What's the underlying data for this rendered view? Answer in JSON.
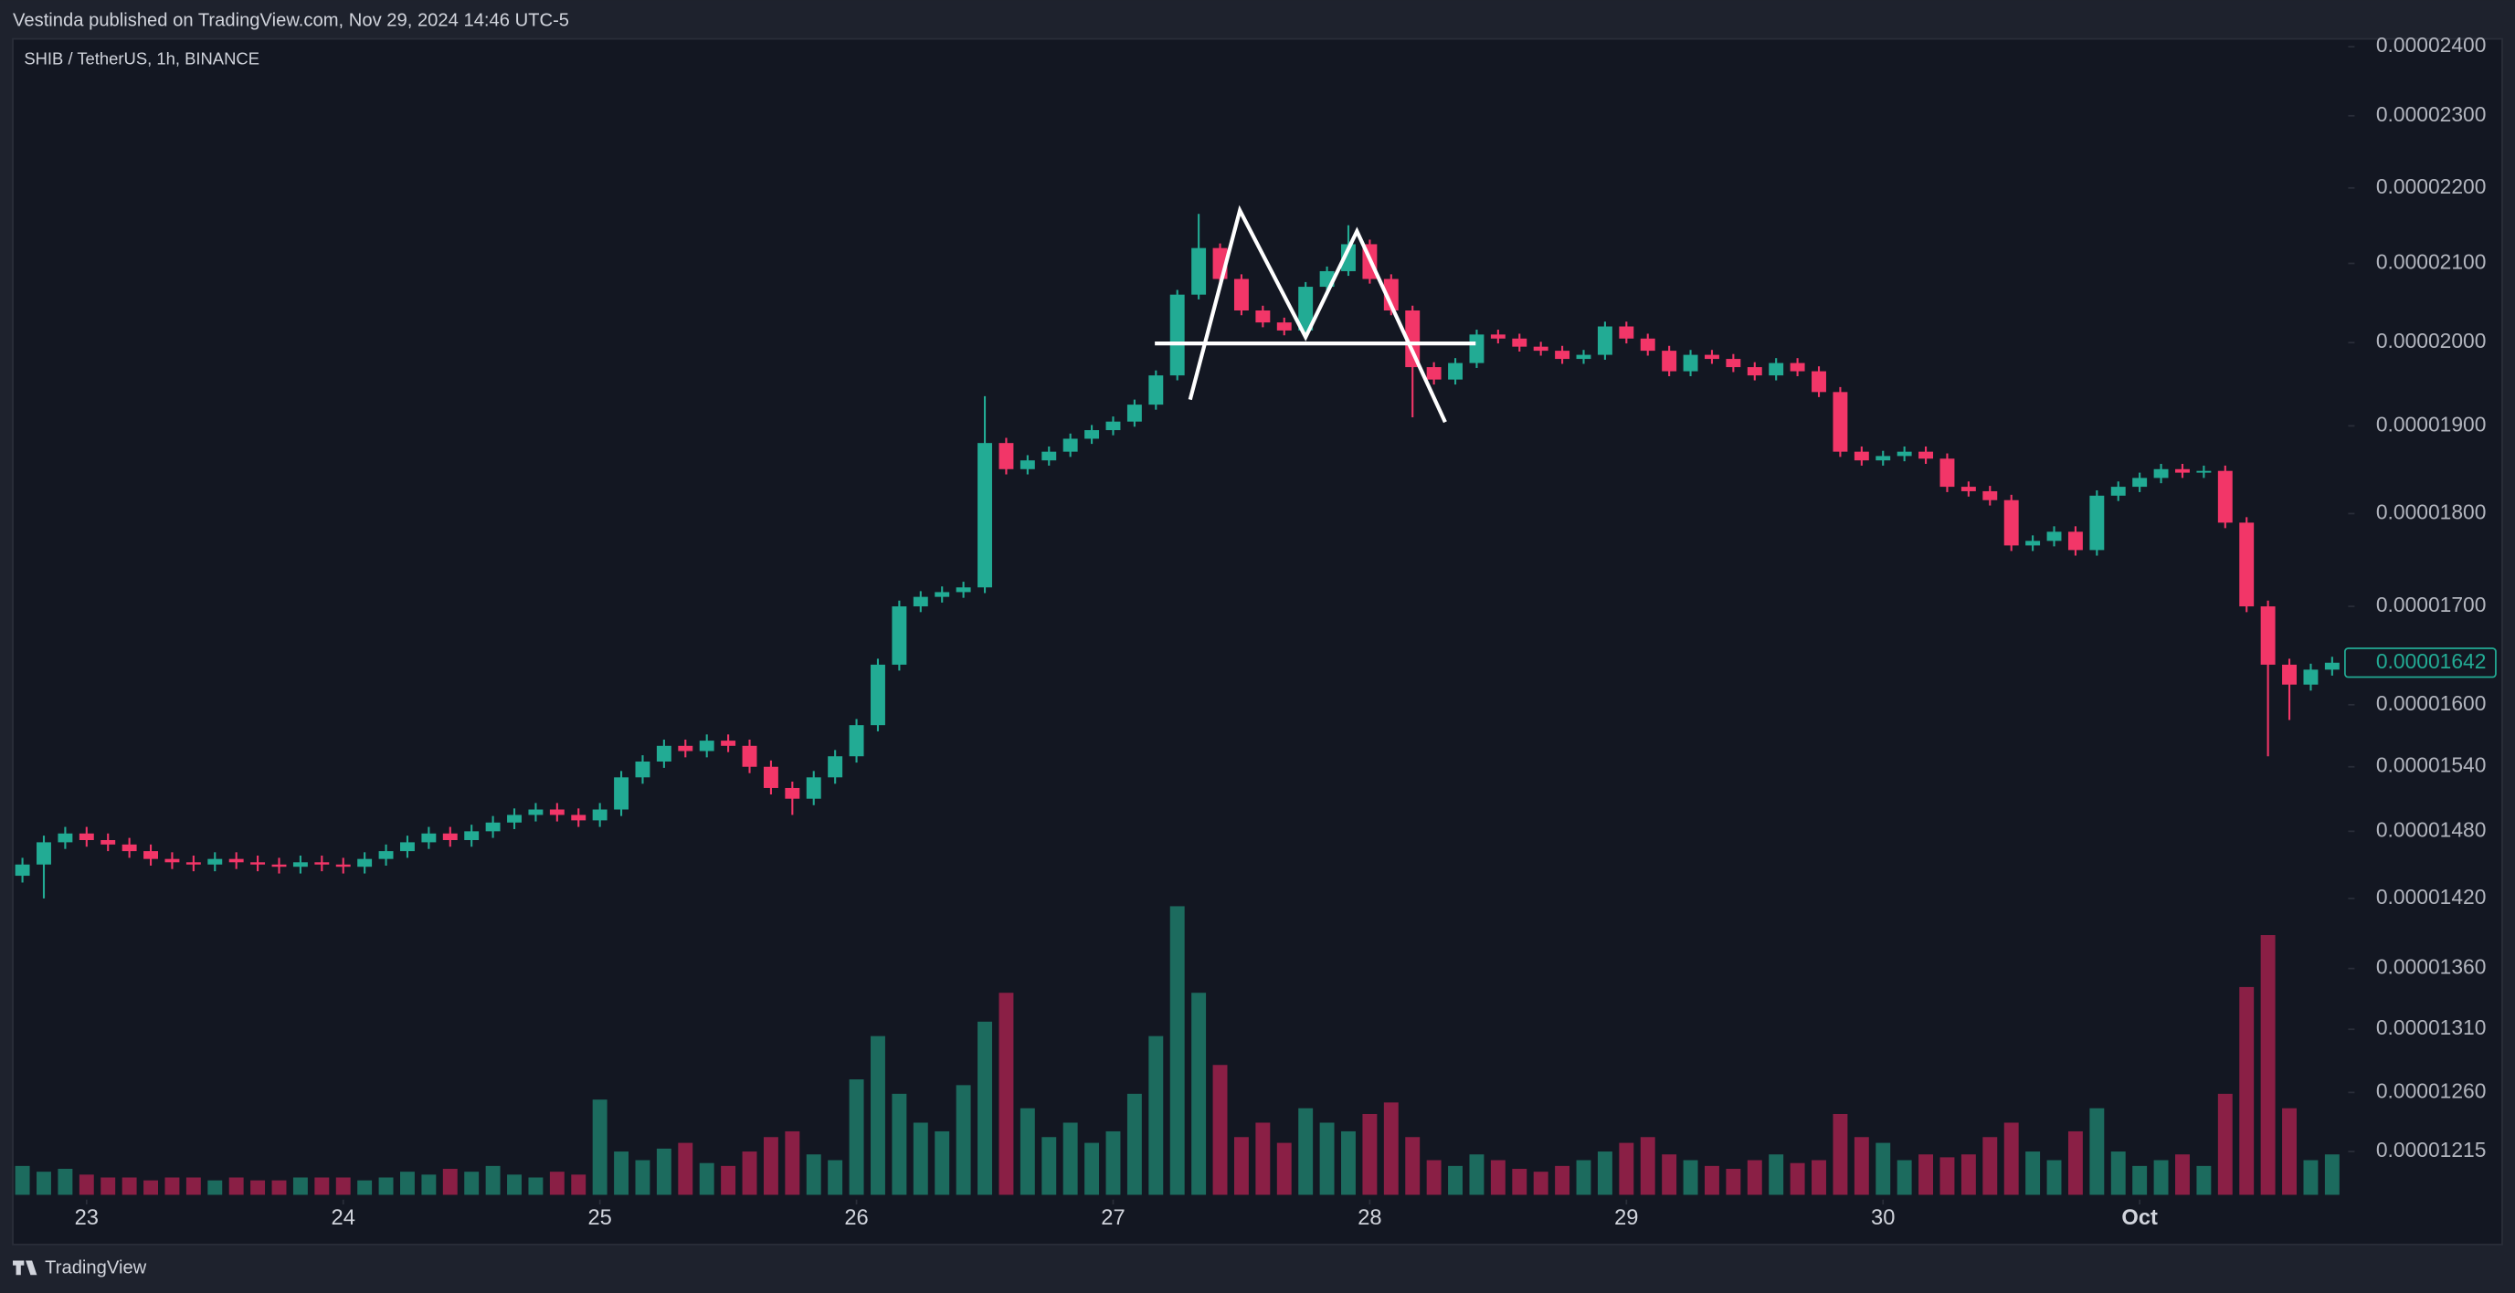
{
  "header": {
    "text": "Vestinda published on TradingView.com, Nov 29, 2024 14:46 UTC-5"
  },
  "footer": {
    "brand": "TradingView"
  },
  "chart_data": {
    "type": "candlestick",
    "title": "SHIB / TetherUS, 1h, BINANCE",
    "log_scale": true,
    "up_color": "#22ab94",
    "down_color": "#f23668",
    "volume_up_color": "#1c6b5e",
    "volume_down_color": "#8a1f45",
    "ylim": [
      1.183e-05,
      2.414e-05
    ],
    "yticks": [
      {
        "value": 2.4e-05,
        "label": "0.00002400"
      },
      {
        "value": 2.3e-05,
        "label": "0.00002300"
      },
      {
        "value": 2.2e-05,
        "label": "0.00002200"
      },
      {
        "value": 2.1e-05,
        "label": "0.00002100"
      },
      {
        "value": 2e-05,
        "label": "0.00002000"
      },
      {
        "value": 1.9e-05,
        "label": "0.00001900"
      },
      {
        "value": 1.8e-05,
        "label": "0.00001800"
      },
      {
        "value": 1.7e-05,
        "label": "0.00001700"
      },
      {
        "value": 1.6e-05,
        "label": "0.00001600"
      },
      {
        "value": 1.54e-05,
        "label": "0.00001540"
      },
      {
        "value": 1.48e-05,
        "label": "0.00001480"
      },
      {
        "value": 1.42e-05,
        "label": "0.00001420"
      },
      {
        "value": 1.36e-05,
        "label": "0.00001360"
      },
      {
        "value": 1.31e-05,
        "label": "0.00001310"
      },
      {
        "value": 1.26e-05,
        "label": "0.00001260"
      },
      {
        "value": 1.215e-05,
        "label": "0.00001215"
      }
    ],
    "xlim": [
      -0.45,
      108.6
    ],
    "xticks": [
      {
        "value": 3,
        "label": "23"
      },
      {
        "value": 15,
        "label": "24"
      },
      {
        "value": 27,
        "label": "25"
      },
      {
        "value": 39,
        "label": "26"
      },
      {
        "value": 51,
        "label": "27"
      },
      {
        "value": 63,
        "label": "28"
      },
      {
        "value": 75,
        "label": "29"
      },
      {
        "value": 87,
        "label": "30"
      },
      {
        "value": 99,
        "label": "Oct"
      }
    ],
    "vlim": [
      0,
      100
    ],
    "last_price": {
      "value": 1.642e-05,
      "label": "0.00001642"
    },
    "open": [
      1.44e-05,
      1.45e-05,
      1.47e-05,
      1.478e-05,
      1.472e-05,
      1.468e-05,
      1.462e-05,
      1.455e-05,
      1.452e-05,
      1.45e-05,
      1.455e-05,
      1.452e-05,
      1.45e-05,
      1.448e-05,
      1.452e-05,
      1.45e-05,
      1.448e-05,
      1.455e-05,
      1.462e-05,
      1.47e-05,
      1.478e-05,
      1.472e-05,
      1.48e-05,
      1.488e-05,
      1.495e-05,
      1.5e-05,
      1.495e-05,
      1.49e-05,
      1.5e-05,
      1.53e-05,
      1.545e-05,
      1.56e-05,
      1.555e-05,
      1.565e-05,
      1.56e-05,
      1.54e-05,
      1.52e-05,
      1.51e-05,
      1.53e-05,
      1.55e-05,
      1.58e-05,
      1.64e-05,
      1.7e-05,
      1.71e-05,
      1.715e-05,
      1.72e-05,
      1.88e-05,
      1.85e-05,
      1.86e-05,
      1.87e-05,
      1.885e-05,
      1.895e-05,
      1.905e-05,
      1.925e-05,
      1.96e-05,
      2.06e-05,
      2.12e-05,
      2.08e-05,
      2.04e-05,
      2.025e-05,
      2.015e-05,
      2.07e-05,
      2.09e-05,
      2.125e-05,
      2.08e-05,
      2.04e-05,
      1.97e-05,
      1.955e-05,
      1.975e-05,
      2.01e-05,
      2.005e-05,
      1.995e-05,
      1.99e-05,
      1.98e-05,
      1.985e-05,
      2.02e-05,
      2.005e-05,
      1.99e-05,
      1.965e-05,
      1.985e-05,
      1.98e-05,
      1.97e-05,
      1.96e-05,
      1.975e-05,
      1.965e-05,
      1.94e-05,
      1.87e-05,
      1.86e-05,
      1.865e-05,
      1.87e-05,
      1.862e-05,
      1.83e-05,
      1.825e-05,
      1.815e-05,
      1.765e-05,
      1.77e-05,
      1.78e-05,
      1.76e-05,
      1.82e-05,
      1.83e-05,
      1.84e-05,
      1.85e-05,
      1.846e-05,
      1.848e-05,
      1.79e-05,
      1.7e-05,
      1.64e-05,
      1.62e-05,
      1.635e-05
    ],
    "high": [
      1.456e-05,
      1.476e-05,
      1.484e-05,
      1.484e-05,
      1.478e-05,
      1.474e-05,
      1.468e-05,
      1.461e-05,
      1.458e-05,
      1.461e-05,
      1.461e-05,
      1.458e-05,
      1.456e-05,
      1.458e-05,
      1.458e-05,
      1.456e-05,
      1.461e-05,
      1.468e-05,
      1.476e-05,
      1.484e-05,
      1.484e-05,
      1.486e-05,
      1.494e-05,
      1.501e-05,
      1.506e-05,
      1.506e-05,
      1.501e-05,
      1.506e-05,
      1.536e-05,
      1.551e-05,
      1.566e-05,
      1.566e-05,
      1.571e-05,
      1.571e-05,
      1.566e-05,
      1.546e-05,
      1.526e-05,
      1.536e-05,
      1.556e-05,
      1.586e-05,
      1.646e-05,
      1.706e-05,
      1.716e-05,
      1.721e-05,
      1.726e-05,
      1.935e-05,
      1.886e-05,
      1.866e-05,
      1.876e-05,
      1.891e-05,
      1.901e-05,
      1.911e-05,
      1.931e-05,
      1.966e-05,
      2.066e-05,
      2.165e-05,
      2.126e-05,
      2.086e-05,
      2.046e-05,
      2.031e-05,
      2.076e-05,
      2.096e-05,
      2.15e-05,
      2.131e-05,
      2.086e-05,
      2.046e-05,
      1.976e-05,
      1.981e-05,
      2.016e-05,
      2.016e-05,
      2.011e-05,
      2.001e-05,
      1.996e-05,
      1.991e-05,
      2.026e-05,
      2.026e-05,
      2.011e-05,
      1.996e-05,
      1.991e-05,
      1.991e-05,
      1.986e-05,
      1.976e-05,
      1.981e-05,
      1.981e-05,
      1.971e-05,
      1.946e-05,
      1.876e-05,
      1.871e-05,
      1.876e-05,
      1.876e-05,
      1.868e-05,
      1.836e-05,
      1.831e-05,
      1.821e-05,
      1.776e-05,
      1.786e-05,
      1.786e-05,
      1.826e-05,
      1.836e-05,
      1.846e-05,
      1.856e-05,
      1.856e-05,
      1.854e-05,
      1.854e-05,
      1.796e-05,
      1.706e-05,
      1.646e-05,
      1.641e-05,
      1.648e-05
    ],
    "low": [
      1.434e-05,
      1.42e-05,
      1.464e-05,
      1.466e-05,
      1.462e-05,
      1.456e-05,
      1.449e-05,
      1.446e-05,
      1.444e-05,
      1.444e-05,
      1.446e-05,
      1.444e-05,
      1.442e-05,
      1.442e-05,
      1.444e-05,
      1.442e-05,
      1.442e-05,
      1.449e-05,
      1.456e-05,
      1.464e-05,
      1.466e-05,
      1.466e-05,
      1.474e-05,
      1.482e-05,
      1.489e-05,
      1.489e-05,
      1.484e-05,
      1.484e-05,
      1.494e-05,
      1.524e-05,
      1.539e-05,
      1.549e-05,
      1.549e-05,
      1.554e-05,
      1.534e-05,
      1.514e-05,
      1.495e-05,
      1.504e-05,
      1.524e-05,
      1.544e-05,
      1.574e-05,
      1.634e-05,
      1.694e-05,
      1.704e-05,
      1.709e-05,
      1.714e-05,
      1.844e-05,
      1.844e-05,
      1.854e-05,
      1.864e-05,
      1.879e-05,
      1.889e-05,
      1.899e-05,
      1.919e-05,
      1.954e-05,
      2.054e-05,
      2.074e-05,
      2.034e-05,
      2.019e-05,
      2.009e-05,
      2.009e-05,
      2.064e-05,
      2.084e-05,
      2.074e-05,
      2.034e-05,
      1.91e-05,
      1.949e-05,
      1.949e-05,
      1.969e-05,
      1.999e-05,
      1.989e-05,
      1.984e-05,
      1.974e-05,
      1.974e-05,
      1.979e-05,
      1.999e-05,
      1.984e-05,
      1.959e-05,
      1.959e-05,
      1.974e-05,
      1.964e-05,
      1.954e-05,
      1.954e-05,
      1.959e-05,
      1.934e-05,
      1.864e-05,
      1.854e-05,
      1.854e-05,
      1.859e-05,
      1.856e-05,
      1.824e-05,
      1.819e-05,
      1.809e-05,
      1.759e-05,
      1.759e-05,
      1.764e-05,
      1.754e-05,
      1.754e-05,
      1.814e-05,
      1.824e-05,
      1.834e-05,
      1.84e-05,
      1.84e-05,
      1.784e-05,
      1.694e-05,
      1.55e-05,
      1.585e-05,
      1.614e-05,
      1.629e-05
    ],
    "close": [
      1.45e-05,
      1.47e-05,
      1.478e-05,
      1.472e-05,
      1.468e-05,
      1.462e-05,
      1.455e-05,
      1.452e-05,
      1.45e-05,
      1.455e-05,
      1.452e-05,
      1.45e-05,
      1.448e-05,
      1.452e-05,
      1.45e-05,
      1.448e-05,
      1.455e-05,
      1.462e-05,
      1.47e-05,
      1.478e-05,
      1.472e-05,
      1.48e-05,
      1.488e-05,
      1.495e-05,
      1.5e-05,
      1.495e-05,
      1.49e-05,
      1.5e-05,
      1.53e-05,
      1.545e-05,
      1.56e-05,
      1.555e-05,
      1.565e-05,
      1.56e-05,
      1.54e-05,
      1.52e-05,
      1.51e-05,
      1.53e-05,
      1.55e-05,
      1.58e-05,
      1.64e-05,
      1.7e-05,
      1.71e-05,
      1.715e-05,
      1.72e-05,
      1.88e-05,
      1.85e-05,
      1.86e-05,
      1.87e-05,
      1.885e-05,
      1.895e-05,
      1.905e-05,
      1.925e-05,
      1.96e-05,
      2.06e-05,
      2.12e-05,
      2.08e-05,
      2.04e-05,
      2.025e-05,
      2.015e-05,
      2.07e-05,
      2.09e-05,
      2.125e-05,
      2.08e-05,
      2.04e-05,
      1.97e-05,
      1.955e-05,
      1.975e-05,
      2.01e-05,
      2.005e-05,
      1.995e-05,
      1.99e-05,
      1.98e-05,
      1.985e-05,
      2.02e-05,
      2.005e-05,
      1.99e-05,
      1.965e-05,
      1.985e-05,
      1.98e-05,
      1.97e-05,
      1.96e-05,
      1.975e-05,
      1.965e-05,
      1.94e-05,
      1.87e-05,
      1.86e-05,
      1.865e-05,
      1.87e-05,
      1.862e-05,
      1.83e-05,
      1.825e-05,
      1.815e-05,
      1.765e-05,
      1.77e-05,
      1.78e-05,
      1.76e-05,
      1.82e-05,
      1.83e-05,
      1.84e-05,
      1.85e-05,
      1.846e-05,
      1.848e-05,
      1.79e-05,
      1.7e-05,
      1.64e-05,
      1.62e-05,
      1.635e-05,
      1.642e-05
    ],
    "volume": [
      10,
      8,
      9,
      7,
      6,
      6,
      5,
      6,
      6,
      5,
      6,
      5,
      5,
      6,
      6,
      6,
      5,
      6,
      8,
      7,
      9,
      8,
      10,
      7,
      6,
      8,
      7,
      33,
      15,
      12,
      16,
      18,
      11,
      10,
      15,
      20,
      22,
      14,
      12,
      40,
      55,
      35,
      25,
      22,
      38,
      60,
      70,
      30,
      20,
      25,
      18,
      22,
      35,
      55,
      100,
      70,
      45,
      20,
      25,
      18,
      30,
      25,
      22,
      28,
      32,
      20,
      12,
      10,
      14,
      12,
      9,
      8,
      10,
      12,
      15,
      18,
      20,
      14,
      12,
      10,
      9,
      12,
      14,
      11,
      12,
      28,
      20,
      18,
      12,
      14,
      13,
      14,
      20,
      25,
      15,
      12,
      22,
      30,
      15,
      10,
      12,
      14,
      10,
      35,
      72,
      90,
      30,
      12,
      14
    ]
  }
}
